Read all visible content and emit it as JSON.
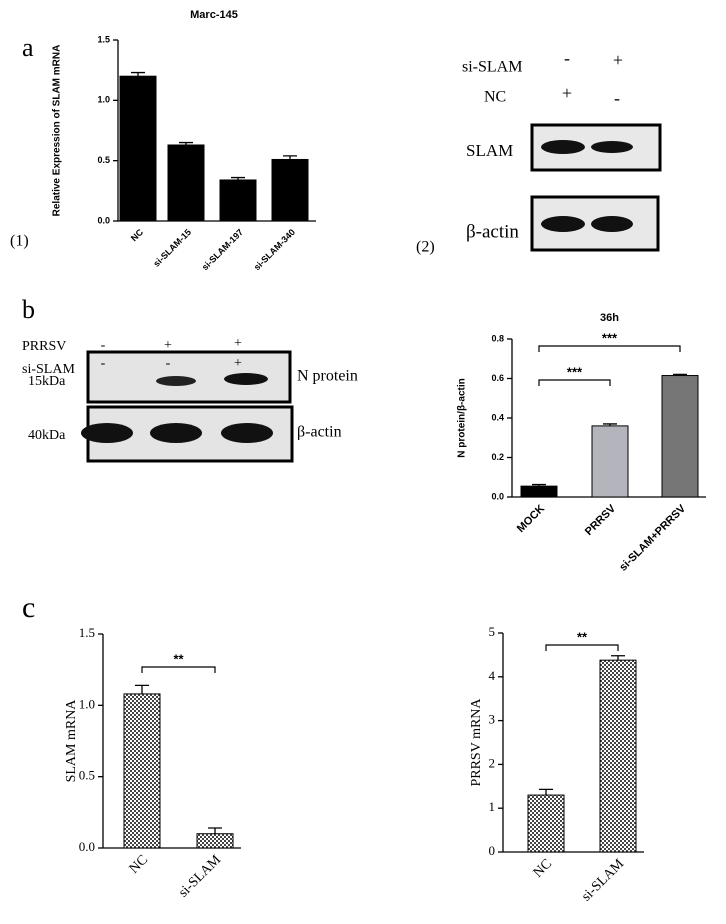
{
  "panel_labels": [
    "a",
    "(1)",
    "(2)",
    "b",
    "c"
  ],
  "chart_data": [
    {
      "type": "bar",
      "title": "Marc-145",
      "y_label": "Relative Expression of SLAM mRNA",
      "categories": [
        "NC",
        "si-SLAM-15",
        "si-SLAM-197",
        "si-SLAM-340"
      ],
      "values": [
        1.2,
        0.63,
        0.34,
        0.51
      ],
      "errors": [
        0.03,
        0.02,
        0.02,
        0.03
      ],
      "color": "#000000",
      "ylim": [
        0,
        1.5
      ],
      "yticks": [
        {
          "value": 0,
          "label": "0.0"
        },
        {
          "value": 0.5,
          "label": "0.5"
        },
        {
          "value": 1,
          "label": "1.0"
        },
        {
          "value": 1.5,
          "label": "1.5"
        }
      ]
    },
    {
      "type": "bar",
      "title": "36h",
      "y_label": "N protein/β-actin",
      "categories": [
        "MOCK",
        "PRRSV",
        "si-SLAM+PRRSV"
      ],
      "values": [
        0.055,
        0.36,
        0.615
      ],
      "errors": [
        0.008,
        0.01,
        0.006
      ],
      "colors": [
        "#000000",
        "#b4b4bc",
        "#767676"
      ],
      "ylim": [
        0,
        0.8
      ],
      "yticks": [
        {
          "value": 0,
          "label": "0.0"
        },
        {
          "value": 0.2,
          "label": "0.2"
        },
        {
          "value": 0.4,
          "label": "0.4"
        },
        {
          "value": 0.6,
          "label": "0.6"
        },
        {
          "value": 0.8,
          "label": "0.8"
        }
      ],
      "annotations": [
        {
          "pair": [
            "MOCK",
            "PRRSV"
          ],
          "label": "***"
        },
        {
          "pair": [
            "MOCK",
            "si-SLAM+PRRSV"
          ],
          "label": "***"
        }
      ]
    },
    {
      "type": "bar",
      "y_label": "SLAM  mRNA",
      "categories": [
        "NC",
        "si-SLAM"
      ],
      "values": [
        1.08,
        0.1
      ],
      "errors": [
        0.06,
        0.04
      ],
      "fill": "checker",
      "ylim": [
        0,
        1.5
      ],
      "yticks": [
        {
          "value": 0,
          "label": "0.0"
        },
        {
          "value": 0.5,
          "label": "0.5"
        },
        {
          "value": 1,
          "label": "1.0"
        },
        {
          "value": 1.5,
          "label": "1.5"
        }
      ],
      "annotations": [
        {
          "pair": [
            "NC",
            "si-SLAM"
          ],
          "label": "**"
        }
      ]
    },
    {
      "type": "bar",
      "y_label": "PRRSV  mRNA",
      "categories": [
        "NC",
        "si-SLAM"
      ],
      "values": [
        1.3,
        4.38
      ],
      "errors": [
        0.13,
        0.1
      ],
      "fill": "checker",
      "ylim": [
        0,
        5
      ],
      "yticks": [
        0,
        1,
        2,
        3,
        4,
        5
      ],
      "annotations": [
        {
          "pair": [
            "NC",
            "si-SLAM"
          ],
          "label": "**"
        }
      ]
    }
  ],
  "blots": [
    {
      "rows": [
        {
          "name": "si-SLAM",
          "marks": [
            "-",
            "+"
          ]
        },
        {
          "name": "NC",
          "marks": [
            "+",
            "-"
          ]
        }
      ],
      "bands": [
        {
          "name": "SLAM"
        },
        {
          "name": "β-actin"
        }
      ]
    },
    {
      "rows": [
        {
          "name": "PRRSV",
          "marks": [
            "-",
            "+",
            "+"
          ]
        },
        {
          "name": "si-SLAM",
          "marks": [
            "-",
            "-",
            "+"
          ]
        }
      ],
      "bands": [
        {
          "size": "15kDa",
          "name": "N protein"
        },
        {
          "size": "40kDa",
          "name": "β-actin"
        }
      ]
    }
  ]
}
